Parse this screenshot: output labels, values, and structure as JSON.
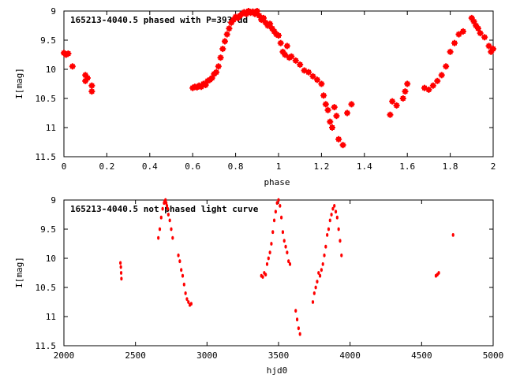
{
  "chart_data": [
    {
      "type": "scatter",
      "title": "165213-4040.5 phased with P=393 dd",
      "xlabel": "phase",
      "ylabel": "I[mag]",
      "xlim": [
        0,
        2
      ],
      "ylim": [
        9,
        11.5
      ],
      "y_inverted": true,
      "xticks": [
        "0",
        "0.2",
        "0.4",
        "0.6",
        "0.8",
        "1",
        "1.2",
        "1.4",
        "1.6",
        "1.8",
        "2"
      ],
      "yticks": [
        "9",
        "9.5",
        "10",
        "10.5",
        "11",
        "11.5"
      ],
      "grid": false,
      "marker_color": "#ff0000",
      "series": [
        {
          "x": [
            0.0,
            0.01,
            0.02,
            0.04,
            0.1,
            0.1,
            0.11,
            0.13,
            0.13,
            0.6,
            0.61,
            0.62,
            0.63,
            0.64,
            0.65,
            0.66,
            0.67,
            0.68,
            0.69,
            0.7,
            0.71,
            0.72,
            0.73,
            0.74,
            0.75,
            0.76,
            0.77,
            0.78,
            0.79,
            0.8,
            0.81,
            0.82,
            0.83,
            0.84,
            0.85,
            0.86,
            0.87,
            0.88,
            0.89,
            0.9,
            0.91,
            0.92,
            0.93,
            0.94,
            0.95,
            0.96,
            0.97,
            0.98,
            0.99,
            1.0,
            1.01,
            1.02,
            1.03,
            1.04,
            1.05,
            1.06,
            1.08,
            1.1,
            1.12,
            1.14,
            1.16,
            1.18,
            1.2,
            1.21,
            1.22,
            1.23,
            1.24,
            1.25,
            1.26,
            1.27,
            1.28,
            1.3,
            1.32,
            1.34,
            1.52,
            1.53,
            1.55,
            1.58,
            1.59,
            1.6,
            1.68,
            1.7,
            1.72,
            1.74,
            1.76,
            1.78,
            1.8,
            1.82,
            1.84,
            1.86,
            1.9,
            1.91,
            1.92,
            1.93,
            1.94,
            1.96,
            1.98,
            1.99,
            2.0
          ],
          "y": [
            9.72,
            9.75,
            9.73,
            9.95,
            10.1,
            10.2,
            10.15,
            10.28,
            10.38,
            10.32,
            10.3,
            10.31,
            10.28,
            10.3,
            10.25,
            10.27,
            10.2,
            10.18,
            10.15,
            10.08,
            10.05,
            9.95,
            9.8,
            9.65,
            9.52,
            9.4,
            9.3,
            9.2,
            9.15,
            9.1,
            9.12,
            9.08,
            9.05,
            9.02,
            9.05,
            9.0,
            9.03,
            9.01,
            9.05,
            9.0,
            9.08,
            9.15,
            9.12,
            9.2,
            9.25,
            9.22,
            9.3,
            9.35,
            9.4,
            9.42,
            9.55,
            9.7,
            9.75,
            9.6,
            9.8,
            9.78,
            9.85,
            9.92,
            10.02,
            10.05,
            10.12,
            10.18,
            10.25,
            10.45,
            10.6,
            10.7,
            10.9,
            11.0,
            10.65,
            10.8,
            11.2,
            11.3,
            10.75,
            10.6,
            10.78,
            10.55,
            10.62,
            10.5,
            10.38,
            10.25,
            10.32,
            10.35,
            10.28,
            10.2,
            10.1,
            9.95,
            9.7,
            9.55,
            9.4,
            9.35,
            9.12,
            9.18,
            9.25,
            9.3,
            9.38,
            9.45,
            9.6,
            9.7,
            9.65
          ]
        }
      ]
    },
    {
      "type": "scatter",
      "title": "165213-4040.5 not phased light curve",
      "xlabel": "hjd0",
      "ylabel": "I[mag]",
      "xlim": [
        2000,
        5000
      ],
      "ylim": [
        9,
        11.5
      ],
      "y_inverted": true,
      "xticks": [
        "2000",
        "2500",
        "3000",
        "3500",
        "4000",
        "4500",
        "5000"
      ],
      "yticks": [
        "9",
        "9.5",
        "10",
        "10.5",
        "11",
        "11.5"
      ],
      "grid": false,
      "marker_color": "#ff0000",
      "series": [
        {
          "x": [
            2395,
            2398,
            2400,
            2402,
            2660,
            2670,
            2680,
            2690,
            2700,
            2705,
            2710,
            2715,
            2720,
            2725,
            2730,
            2740,
            2750,
            2760,
            2800,
            2810,
            2820,
            2830,
            2840,
            2850,
            2860,
            2870,
            2880,
            2890,
            3380,
            3390,
            3400,
            3410,
            3420,
            3430,
            3440,
            3450,
            3460,
            3470,
            3480,
            3490,
            3500,
            3510,
            3520,
            3530,
            3540,
            3550,
            3560,
            3570,
            3580,
            3620,
            3630,
            3640,
            3650,
            3740,
            3750,
            3760,
            3770,
            3780,
            3790,
            3800,
            3810,
            3820,
            3830,
            3840,
            3850,
            3860,
            3870,
            3880,
            3890,
            3900,
            3910,
            3920,
            3930,
            3940,
            4600,
            4610,
            4620,
            4720
          ],
          "y": [
            10.08,
            10.15,
            10.25,
            10.35,
            9.65,
            9.5,
            9.3,
            9.15,
            9.05,
            9.02,
            9.0,
            9.05,
            9.1,
            9.15,
            9.25,
            9.35,
            9.5,
            9.65,
            9.95,
            10.05,
            10.2,
            10.3,
            10.45,
            10.6,
            10.7,
            10.75,
            10.8,
            10.78,
            10.3,
            10.32,
            10.25,
            10.28,
            10.1,
            10.0,
            9.9,
            9.75,
            9.55,
            9.35,
            9.2,
            9.05,
            9.0,
            9.1,
            9.3,
            9.55,
            9.7,
            9.8,
            9.9,
            10.05,
            10.1,
            10.9,
            11.05,
            11.2,
            11.3,
            10.75,
            10.6,
            10.5,
            10.4,
            10.25,
            10.3,
            10.2,
            10.1,
            9.95,
            9.8,
            9.6,
            9.5,
            9.35,
            9.25,
            9.15,
            9.1,
            9.2,
            9.3,
            9.5,
            9.7,
            9.95,
            10.3,
            10.28,
            10.25,
            9.6
          ]
        }
      ]
    }
  ]
}
